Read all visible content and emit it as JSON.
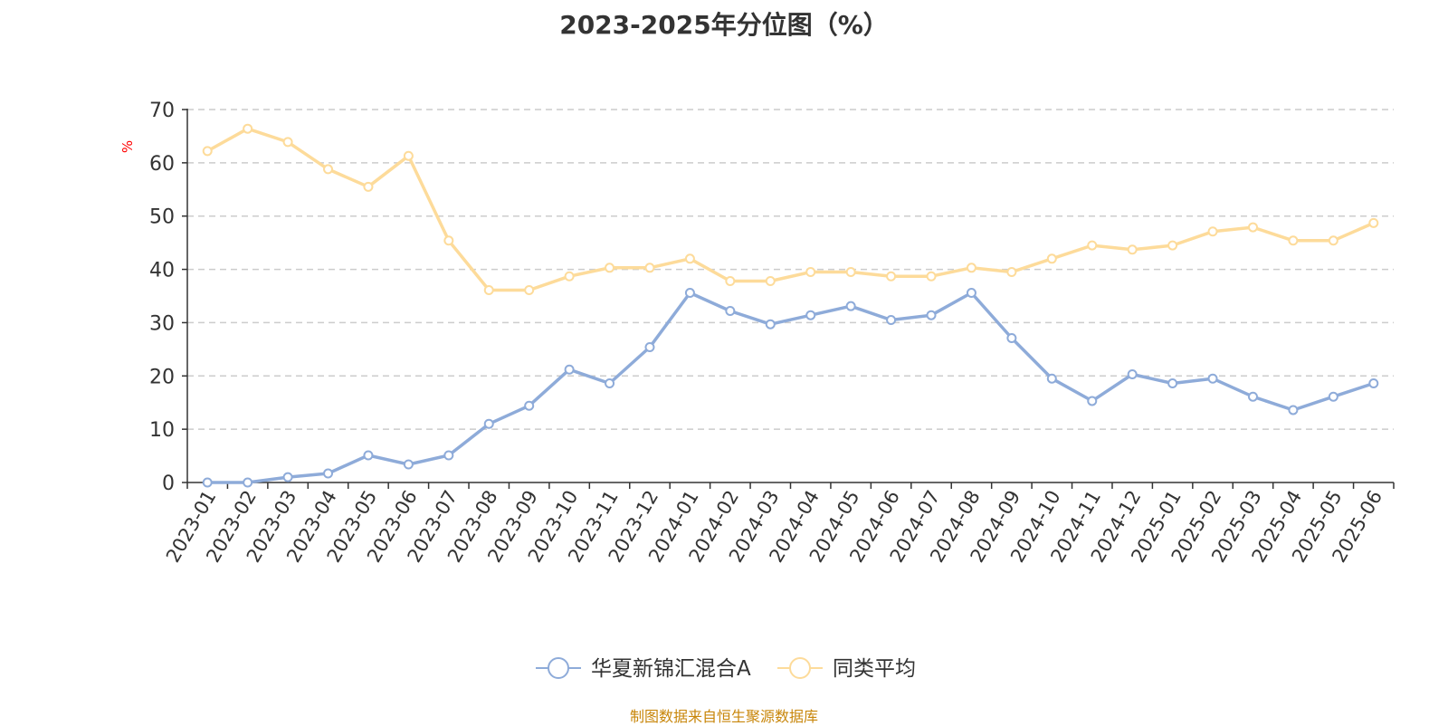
{
  "chart_data": {
    "type": "line",
    "title": "2023-2025年分位图（%）",
    "ylabel": "%",
    "ylim": [
      0,
      70
    ],
    "yticks": [
      0,
      10,
      20,
      30,
      40,
      50,
      60,
      70
    ],
    "grid": true,
    "legend_position": "bottom-center",
    "categories": [
      "2023-01",
      "2023-02",
      "2023-03",
      "2023-04",
      "2023-05",
      "2023-06",
      "2023-07",
      "2023-08",
      "2023-09",
      "2023-10",
      "2023-11",
      "2023-12",
      "2024-01",
      "2024-02",
      "2024-03",
      "2024-04",
      "2024-05",
      "2024-06",
      "2024-07",
      "2024-08",
      "2024-09",
      "2024-10",
      "2024-11",
      "2024-12",
      "2025-01",
      "2025-02",
      "2025-03",
      "2025-04",
      "2025-05",
      "2025-06"
    ],
    "series": [
      {
        "name": "华夏新锦汇混合A",
        "color": "#8eabd9",
        "values": [
          0,
          0,
          1.0,
          1.7,
          5.1,
          3.4,
          5.1,
          11.0,
          14.4,
          21.2,
          18.6,
          25.4,
          35.6,
          32.2,
          29.7,
          31.4,
          33.1,
          30.5,
          31.4,
          35.6,
          27.1,
          19.5,
          15.3,
          20.3,
          18.6,
          19.5,
          16.1,
          13.6,
          16.1,
          18.6
        ]
      },
      {
        "name": "同类平均",
        "color": "#fddb9a",
        "values": [
          62.2,
          66.4,
          63.9,
          58.8,
          55.5,
          61.3,
          45.4,
          36.1,
          36.1,
          38.7,
          40.3,
          40.3,
          42.0,
          37.8,
          37.8,
          39.5,
          39.5,
          38.7,
          38.7,
          40.3,
          39.5,
          42.0,
          44.5,
          43.7,
          44.5,
          47.1,
          47.9,
          45.4,
          45.4,
          48.7
        ]
      }
    ],
    "source_note": "制图数据来自恒生聚源数据库"
  }
}
